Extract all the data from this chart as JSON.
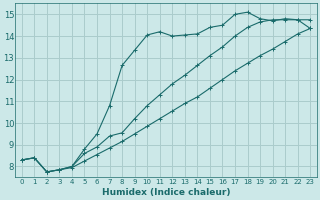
{
  "xlabel": "Humidex (Indice chaleur)",
  "xlim": [
    -0.5,
    23.5
  ],
  "ylim": [
    7.5,
    15.5
  ],
  "xticks": [
    0,
    1,
    2,
    3,
    4,
    5,
    6,
    7,
    8,
    9,
    10,
    11,
    12,
    13,
    14,
    15,
    16,
    17,
    18,
    19,
    20,
    21,
    22,
    23
  ],
  "yticks": [
    8,
    9,
    10,
    11,
    12,
    13,
    14,
    15
  ],
  "background_color": "#cce8e8",
  "line_color": "#1a6b6b",
  "grid_color": "#aacccc",
  "line1_x": [
    0,
    1,
    2,
    3,
    4,
    5,
    6,
    7,
    8,
    9,
    10,
    11,
    12,
    13,
    14,
    15,
    16,
    17,
    18,
    19,
    20,
    21,
    22,
    23
  ],
  "line1_y": [
    8.3,
    8.4,
    7.75,
    7.85,
    8.0,
    8.8,
    9.5,
    10.8,
    12.65,
    13.35,
    14.05,
    14.2,
    14.0,
    14.05,
    14.1,
    14.4,
    14.5,
    15.0,
    15.1,
    14.8,
    14.7,
    14.8,
    14.75,
    14.75
  ],
  "line2_x": [
    0,
    1,
    2,
    3,
    4,
    5,
    6,
    7,
    8,
    9,
    10,
    11,
    12,
    13,
    14,
    15,
    16,
    17,
    18,
    19,
    20,
    21,
    22,
    23
  ],
  "line2_y": [
    8.3,
    8.4,
    7.75,
    7.85,
    8.0,
    8.6,
    8.9,
    9.4,
    9.55,
    10.2,
    10.8,
    11.3,
    11.8,
    12.2,
    12.65,
    13.1,
    13.5,
    14.0,
    14.4,
    14.65,
    14.75,
    14.75,
    14.75,
    14.35
  ],
  "line3_x": [
    0,
    1,
    2,
    3,
    4,
    5,
    6,
    7,
    8,
    9,
    10,
    11,
    12,
    13,
    14,
    15,
    16,
    17,
    18,
    19,
    20,
    21,
    22,
    23
  ],
  "line3_y": [
    8.3,
    8.4,
    7.75,
    7.85,
    7.95,
    8.25,
    8.55,
    8.85,
    9.15,
    9.5,
    9.85,
    10.2,
    10.55,
    10.9,
    11.2,
    11.6,
    12.0,
    12.4,
    12.75,
    13.1,
    13.4,
    13.75,
    14.1,
    14.35
  ]
}
